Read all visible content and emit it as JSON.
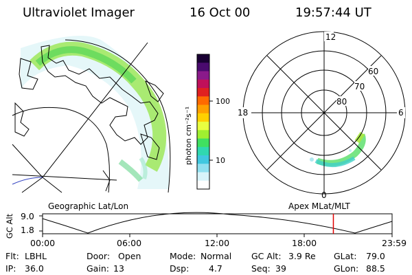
{
  "header": {
    "instrument": "Ultraviolet Imager",
    "date": "16 Oct 00",
    "time": "19:57:44 UT"
  },
  "colorbar": {
    "label": "photon cm⁻²s⁻¹",
    "ticks": [
      "100",
      "10"
    ],
    "colors": [
      "#1a0033",
      "#4a0a6e",
      "#8a1a8a",
      "#c0105a",
      "#e02020",
      "#ff6a00",
      "#ffa000",
      "#ffd000",
      "#e8ff40",
      "#a0f030",
      "#40e060",
      "#30d8b0",
      "#40c8e0",
      "#90e0f0",
      "#d8f4fa",
      "#ffffff"
    ]
  },
  "polar_plot": {
    "mlt_labels": [
      "12",
      "18",
      "6",
      "0"
    ],
    "lat_labels": [
      "60",
      "70",
      "80"
    ]
  },
  "panel_labels": {
    "left": "Geographic Lat/Lon",
    "right": "Apex MLat/MLT"
  },
  "altitude_plot": {
    "axis_label": "GC Alt",
    "y_ticks": [
      "9.0",
      "1.8"
    ],
    "x_ticks": [
      "00:00",
      "06:00",
      "12:00",
      "18:00",
      "23:59"
    ],
    "current_time_fraction": 0.832,
    "marker_color": "#e00000"
  },
  "status": {
    "row1": [
      {
        "label": "Flt:",
        "value": "LBHL"
      },
      {
        "label": "Door:",
        "value": "Open"
      },
      {
        "label": "Mode:",
        "value": "Normal"
      },
      {
        "label": "GC Alt:",
        "value": "3.9 Re"
      },
      {
        "label": "GLat:",
        "value": "79.0"
      }
    ],
    "row2": [
      {
        "label": "IP:",
        "value": "36.0"
      },
      {
        "label": "Gain:",
        "value": "13"
      },
      {
        "label": "Dsp:",
        "value": "4.7"
      },
      {
        "label": "Seq:",
        "value": "39"
      },
      {
        "label": "GLon:",
        "value": "88.5"
      }
    ]
  }
}
